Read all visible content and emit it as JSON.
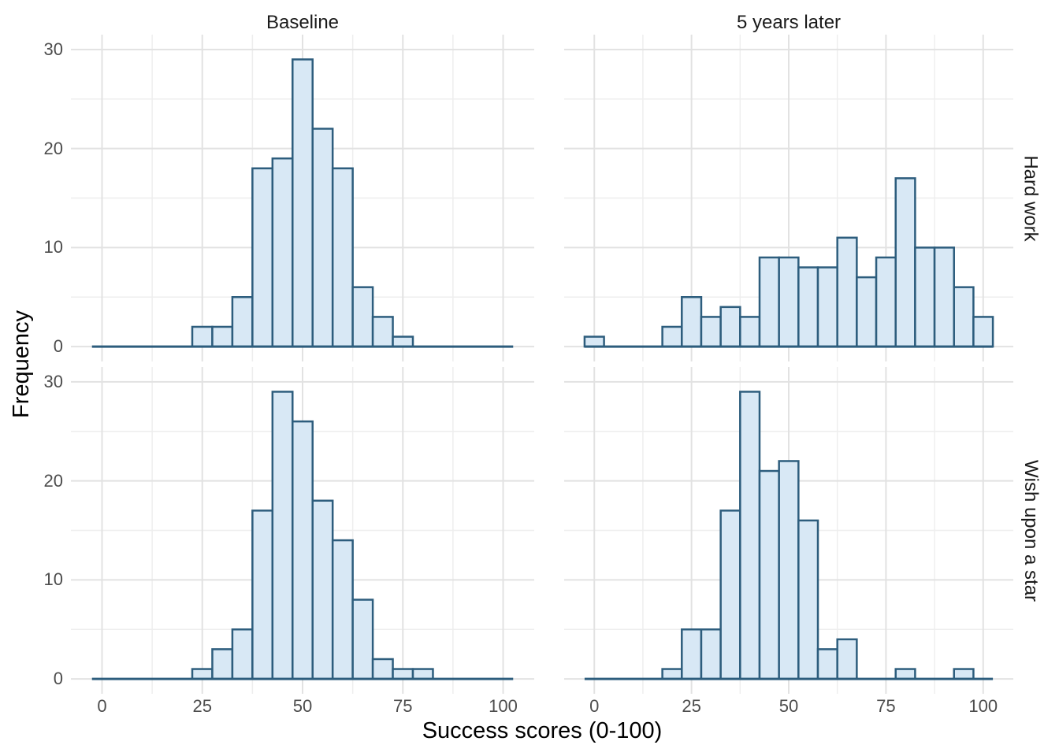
{
  "labels": {
    "col_strips": [
      "Baseline",
      "5 years later"
    ],
    "row_strips": [
      "Hard work",
      "Wish upon a star"
    ],
    "x_axis_title": "Success scores (0-100)",
    "y_axis_title": "Frequency"
  },
  "colors": {
    "bar_fill": "#d8e8f5",
    "bar_stroke": "#2d5d7d",
    "zero_line": "#2d5d7d",
    "grid_major": "#e2e2e2",
    "grid_minor": "#eeeeee",
    "tick_label": "#4d4d4d",
    "strip_text": "#1a1a1a",
    "axis_title_text": "#000000",
    "panel_background": "#ffffff"
  },
  "chart_data": {
    "type": "bar",
    "subtype": "faceted-histogram-2x2",
    "title": "",
    "xlabel": "Success scores (0-100)",
    "ylabel": "Frequency",
    "facet_columns": [
      "Baseline",
      "5 years later"
    ],
    "facet_rows": [
      "Hard work",
      "Wish upon a star"
    ],
    "bin_width": 5,
    "bar_baseline_range": [
      -2.5,
      102.5
    ],
    "xlim": [
      -7.75,
      107.75
    ],
    "ylim": [
      -1.5,
      31.5
    ],
    "x_major_ticks": [
      0,
      25,
      50,
      75,
      100
    ],
    "x_minor_gridlines": [
      12.5,
      37.5,
      62.5,
      87.5
    ],
    "y_major_ticks": [
      0,
      10,
      20,
      30
    ],
    "y_minor_gridlines": [
      5,
      15,
      25
    ],
    "grid": "on",
    "legend": "none",
    "panels": [
      {
        "col": "Baseline",
        "row": "Hard work",
        "bins": [
          [
            25,
            2
          ],
          [
            30,
            2
          ],
          [
            35,
            5
          ],
          [
            40,
            18
          ],
          [
            45,
            19
          ],
          [
            50,
            29
          ],
          [
            55,
            22
          ],
          [
            60,
            18
          ],
          [
            65,
            6
          ],
          [
            70,
            3
          ],
          [
            75,
            1
          ]
        ]
      },
      {
        "col": "5 years later",
        "row": "Hard work",
        "bins": [
          [
            0,
            1
          ],
          [
            20,
            2
          ],
          [
            25,
            5
          ],
          [
            30,
            3
          ],
          [
            35,
            4
          ],
          [
            40,
            3
          ],
          [
            45,
            9
          ],
          [
            50,
            9
          ],
          [
            55,
            8
          ],
          [
            60,
            8
          ],
          [
            65,
            11
          ],
          [
            70,
            7
          ],
          [
            75,
            9
          ],
          [
            80,
            17
          ],
          [
            85,
            10
          ],
          [
            90,
            10
          ],
          [
            95,
            6
          ],
          [
            100,
            3
          ]
        ]
      },
      {
        "col": "Baseline",
        "row": "Wish upon a star",
        "bins": [
          [
            25,
            1
          ],
          [
            30,
            3
          ],
          [
            35,
            5
          ],
          [
            40,
            17
          ],
          [
            45,
            29
          ],
          [
            50,
            26
          ],
          [
            55,
            18
          ],
          [
            60,
            14
          ],
          [
            65,
            8
          ],
          [
            70,
            2
          ],
          [
            75,
            1
          ],
          [
            80,
            1
          ]
        ]
      },
      {
        "col": "5 years later",
        "row": "Wish upon a star",
        "bins": [
          [
            20,
            1
          ],
          [
            25,
            5
          ],
          [
            30,
            5
          ],
          [
            35,
            17
          ],
          [
            40,
            29
          ],
          [
            45,
            21
          ],
          [
            50,
            22
          ],
          [
            55,
            16
          ],
          [
            60,
            3
          ],
          [
            65,
            4
          ],
          [
            80,
            1
          ],
          [
            95,
            1
          ]
        ]
      }
    ]
  }
}
